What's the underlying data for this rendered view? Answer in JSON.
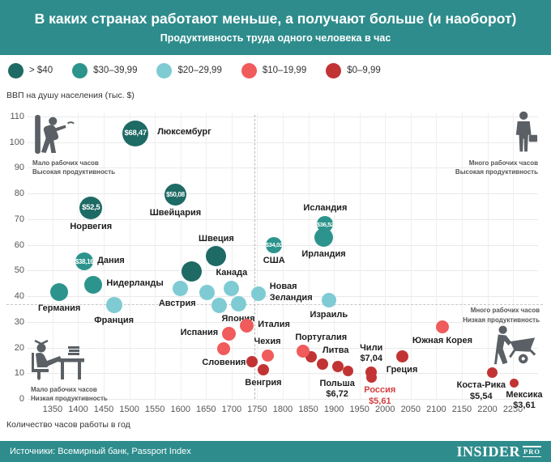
{
  "header": {
    "title": "В каких странах работают меньше, а получают больше (и наоборот)",
    "subtitle": "Продуктивность труда одного человека в час"
  },
  "colors": {
    "gt40": "#1E6A64",
    "b30": "#2C948C",
    "b20": "#7FCBD4",
    "b10": "#F05B5B",
    "b0": "#C23434"
  },
  "legend": {
    "items": [
      {
        "label": "> $40",
        "bucket": "gt40"
      },
      {
        "label": "$30–39,99",
        "bucket": "b30"
      },
      {
        "label": "$20–29,99",
        "bucket": "b20"
      },
      {
        "label": "$10–19,99",
        "bucket": "b10"
      },
      {
        "label": "$0–9,99",
        "bucket": "b0"
      }
    ]
  },
  "chart_data": {
    "type": "scatter",
    "title": "В каких странах работают меньше, а получают больше (и наоборот)",
    "subtitle": "Продуктивность труда одного человека в час",
    "xlabel": "Количество часов работы в год",
    "ylabel": "ВВП на душу населения (тыс. $)",
    "xlim": [
      1301,
      2299
    ],
    "ylim": [
      0,
      115
    ],
    "x_ticks": [
      1350,
      1400,
      1450,
      1500,
      1550,
      1600,
      1650,
      1700,
      1750,
      1800,
      1850,
      1900,
      1950,
      2000,
      2050,
      2100,
      2150,
      2200,
      2250
    ],
    "y_ticks": [
      0,
      10,
      20,
      30,
      40,
      50,
      60,
      70,
      80,
      90,
      100,
      110
    ],
    "grid": true,
    "size_meaning": "bubble size ~ productivity $ per hour",
    "reference_lines": {
      "vertical_hours": 1745,
      "horizontal_gdp": 37
    },
    "points": [
      {
        "name": "Германия",
        "hours": 1363,
        "gdp": 41.5,
        "bucket": "b30",
        "r": 11,
        "label": {
          "lines": [
            "Германия"
          ],
          "pos": "below"
        }
      },
      {
        "name": "Дания",
        "hours": 1412,
        "gdp": 53.5,
        "bucket": "b30",
        "r": 11,
        "badge": "$38,16",
        "label": {
          "lines": [
            "Дания"
          ],
          "pos": "right"
        }
      },
      {
        "name": "Нидерланды",
        "hours": 1430,
        "gdp": 44.5,
        "bucket": "b30",
        "r": 11,
        "label": {
          "lines": [
            "Нидерланды"
          ],
          "pos": "right"
        }
      },
      {
        "name": "Норвегия",
        "hours": 1425,
        "gdp": 74.5,
        "bucket": "gt40",
        "r": 14,
        "badge": "$52,5",
        "label": {
          "lines": [
            "Норвегия"
          ],
          "pos": "below"
        }
      },
      {
        "name": "Люксембург",
        "hours": 1512,
        "gdp": 103.5,
        "bucket": "gt40",
        "r": 16,
        "badge": "$68,47",
        "label": {
          "lines": [
            "Люксембург"
          ],
          "pos": "right",
          "dx": 6
        }
      },
      {
        "name": "Франция",
        "hours": 1470,
        "gdp": 36.5,
        "bucket": "b20",
        "r": 10,
        "label": {
          "lines": [
            "Франция"
          ],
          "pos": "below"
        }
      },
      {
        "name": "Швейцария",
        "hours": 1590,
        "gdp": 79.5,
        "bucket": "gt40",
        "r": 13.5,
        "badge": "$50,08",
        "label": {
          "lines": [
            "Швейцария"
          ],
          "pos": "below"
        }
      },
      {
        "name": "",
        "hours": 1622,
        "gdp": 49.5,
        "bucket": "gt40",
        "r": 12.5
      },
      {
        "name": "Швеция",
        "hours": 1670,
        "gdp": 55.5,
        "bucket": "gt40",
        "r": 12.5,
        "label": {
          "lines": [
            "Швеция"
          ],
          "pos": "above"
        }
      },
      {
        "name": "Австрия",
        "hours": 1600,
        "gdp": 43,
        "bucket": "b20",
        "r": 9.5,
        "label": {
          "lines": [
            "Австрия"
          ],
          "pos": "below",
          "dx": -4
        }
      },
      {
        "name": "",
        "hours": 1652,
        "gdp": 41.5,
        "bucket": "b20",
        "r": 9.5
      },
      {
        "name": "Канада",
        "hours": 1700,
        "gdp": 43,
        "bucket": "b20",
        "r": 9.5,
        "label": {
          "lines": [
            "Канада"
          ],
          "pos": "above"
        }
      },
      {
        "name": "",
        "hours": 1676,
        "gdp": 36.5,
        "bucket": "b20",
        "r": 9.5
      },
      {
        "name": "Япония",
        "hours": 1713,
        "gdp": 37,
        "bucket": "b20",
        "r": 9.5,
        "label": {
          "lines": [
            "Япония"
          ],
          "pos": "below"
        }
      },
      {
        "name": "Новая Зеландия",
        "hours": 1752,
        "gdp": 41,
        "bucket": "b20",
        "r": 9,
        "label": {
          "lines": [
            "Новая",
            "Зеландия"
          ],
          "pos": "right"
        }
      },
      {
        "name": "США",
        "hours": 1783,
        "gdp": 60,
        "bucket": "b30",
        "r": 10,
        "badge": "$34,02",
        "label": {
          "lines": [
            "США"
          ],
          "pos": "below"
        }
      },
      {
        "name": "Ирландия",
        "hours": 1880,
        "gdp": 63,
        "bucket": "b30",
        "r": 11.5,
        "label": {
          "lines": [
            "Ирландия"
          ],
          "pos": "below"
        }
      },
      {
        "name": "Исландия",
        "hours": 1883,
        "gdp": 68,
        "bucket": "b30",
        "r": 10,
        "badge": "$36,52",
        "label": {
          "lines": [
            "Исландия"
          ],
          "pos": "above"
        }
      },
      {
        "name": "Израиль",
        "hours": 1890,
        "gdp": 38.5,
        "bucket": "b20",
        "r": 9,
        "label": {
          "lines": [
            "Израиль"
          ],
          "pos": "below"
        }
      },
      {
        "name": "Италия",
        "hours": 1730,
        "gdp": 28.5,
        "bucket": "b10",
        "r": 8.5,
        "label": {
          "lines": [
            "Италия"
          ],
          "pos": "right"
        }
      },
      {
        "name": "Испания",
        "hours": 1695,
        "gdp": 25.5,
        "bucket": "b10",
        "r": 8.5,
        "label": {
          "lines": [
            "Испания"
          ],
          "pos": "left"
        }
      },
      {
        "name": "Словения",
        "hours": 1685,
        "gdp": 19.5,
        "bucket": "b10",
        "r": 8,
        "label": {
          "lines": [
            "Словения"
          ],
          "pos": "below"
        }
      },
      {
        "name": "Чехия",
        "hours": 1770,
        "gdp": 17,
        "bucket": "b10",
        "r": 7.5,
        "label": {
          "lines": [
            "Чехия"
          ],
          "pos": "above"
        }
      },
      {
        "name": "",
        "hours": 1740,
        "gdp": 14.5,
        "bucket": "b0",
        "r": 7
      },
      {
        "name": "Венгрия",
        "hours": 1762,
        "gdp": 11.5,
        "bucket": "b0",
        "r": 7,
        "label": {
          "lines": [
            "Венгрия"
          ],
          "pos": "below"
        }
      },
      {
        "name": "",
        "hours": 1856,
        "gdp": 16.5,
        "bucket": "b0",
        "r": 7
      },
      {
        "name": "Португалия",
        "hours": 1840,
        "gdp": 18.5,
        "bucket": "b10",
        "r": 8,
        "label": {
          "lines": [
            "Португалия"
          ],
          "pos": "above",
          "dx": 22
        }
      },
      {
        "name": "Литва",
        "hours": 1878,
        "gdp": 13.5,
        "bucket": "b0",
        "r": 7,
        "label": {
          "lines": [
            "Литва"
          ],
          "pos": "above",
          "dx": 16
        }
      },
      {
        "name": "",
        "hours": 1908,
        "gdp": 12.6,
        "bucket": "b0",
        "r": 7
      },
      {
        "name": "Польша",
        "hours": 1927,
        "gdp": 11,
        "bucket": "b0",
        "r": 6.5,
        "label": {
          "lines": [
            "Польша",
            "$6,72"
          ],
          "pos": "below",
          "dx": -13
        }
      },
      {
        "name": "Чили",
        "hours": 1973,
        "gdp": 10.4,
        "bucket": "b0",
        "r": 7,
        "label": {
          "lines": [
            "Чили",
            "$7,04"
          ],
          "pos": "above"
        }
      },
      {
        "name": "Россия",
        "hours": 1974,
        "gdp": 8.2,
        "bucket": "b0",
        "r": 6.5,
        "label": {
          "lines": [
            "Россия",
            "$5,61"
          ],
          "pos": "below",
          "dx": 10,
          "color": "#D23F3F"
        }
      },
      {
        "name": "Греция",
        "hours": 2033,
        "gdp": 16.4,
        "bucket": "b0",
        "r": 7.5,
        "label": {
          "lines": [
            "Греция"
          ],
          "pos": "below"
        }
      },
      {
        "name": "Южная Корея",
        "hours": 2112,
        "gdp": 28,
        "bucket": "b10",
        "r": 8,
        "label": {
          "lines": [
            "Южная Корея"
          ],
          "pos": "below"
        }
      },
      {
        "name": "Коста-Рика",
        "hours": 2210,
        "gdp": 10.1,
        "bucket": "b0",
        "r": 6.5,
        "label": {
          "lines": [
            "Коста-Рика",
            "$5,54"
          ],
          "pos": "below",
          "dx": -14
        }
      },
      {
        "name": "Мексика",
        "hours": 2253,
        "gdp": 6.3,
        "bucket": "b0",
        "r": 5.5,
        "label": {
          "lines": [
            "Мексика",
            "$3,61"
          ],
          "pos": "below",
          "dx": 12
        }
      }
    ]
  },
  "quadrant_labels": [
    {
      "id": "tl",
      "icon": "leaning-on-wall-icon",
      "lines": [
        "Мало рабочих часов",
        "Высокая продуктивность"
      ]
    },
    {
      "id": "tr",
      "icon": "businessman-icon",
      "lines": [
        "Много рабочих часов",
        "Высокая продуктивность"
      ]
    },
    {
      "id": "bl",
      "icon": "feet-on-desk-icon",
      "lines": [
        "Мало рабочих часов",
        "Низкая продуктивность"
      ]
    },
    {
      "id": "br",
      "icon": "wheelbarrow-icon",
      "lines": [
        "Много рабочих часов",
        "Низкая продуктивность"
      ]
    }
  ],
  "footer": {
    "sources": "Источники: Всемирный банк, Passport Index",
    "logo": "INSIDER",
    "logo_suffix": "PRO"
  }
}
